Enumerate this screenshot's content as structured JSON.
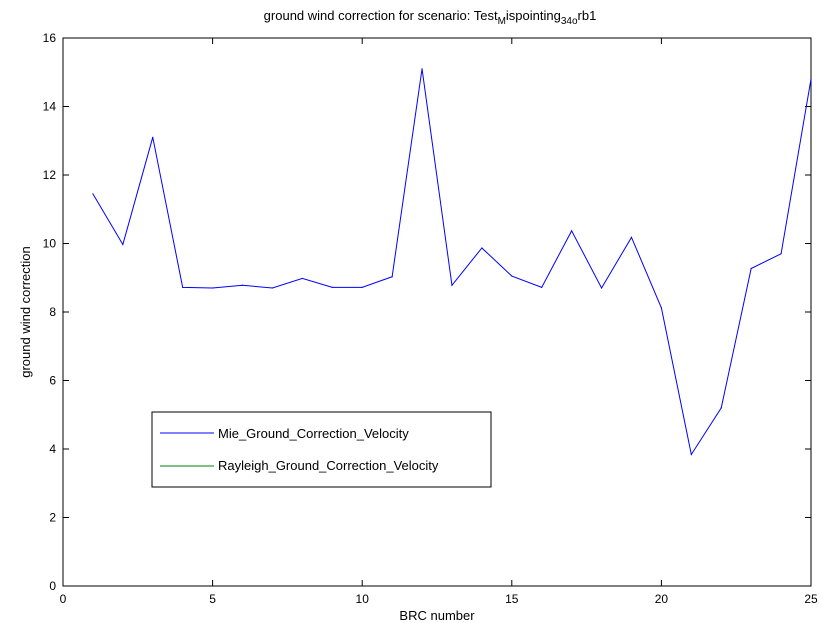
{
  "chart_data": {
    "type": "line",
    "title_main": "ground wind correction for scenario: Test",
    "title_sub1": "M",
    "title_mid": "ispointing",
    "title_sub2": "34o",
    "title_end": "rb1",
    "xlabel": "BRC number",
    "ylabel": "ground wind correction",
    "xlim": [
      0,
      25
    ],
    "ylim": [
      0,
      16
    ],
    "xticks": [
      0,
      5,
      10,
      15,
      20,
      25
    ],
    "yticks": [
      0,
      2,
      4,
      6,
      8,
      10,
      12,
      14,
      16
    ],
    "grid": false,
    "legend_position": "lower-left",
    "series": [
      {
        "name": "Mie_Ground_Correction_Velocity",
        "color": "#0000ff",
        "x": [
          1,
          2,
          3,
          4,
          5,
          6,
          7,
          8,
          9,
          10,
          11,
          12,
          13,
          14,
          15,
          16,
          17,
          18,
          19,
          20,
          21,
          22,
          23,
          24,
          25
        ],
        "y": [
          11.45,
          9.97,
          13.1,
          8.72,
          8.7,
          8.78,
          8.7,
          8.98,
          8.72,
          8.72,
          9.03,
          15.1,
          8.78,
          9.87,
          9.05,
          8.72,
          10.37,
          8.7,
          10.18,
          8.12,
          3.84,
          5.2,
          9.27,
          9.7,
          14.8
        ]
      },
      {
        "name": "Rayleigh_Ground_Correction_Velocity",
        "color": "#008000",
        "x": [],
        "y": []
      }
    ]
  }
}
